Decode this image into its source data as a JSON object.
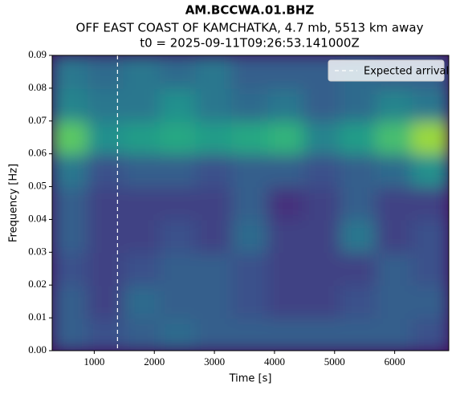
{
  "chart_data": {
    "type": "heatmap",
    "title": "AM.BCCWA.01.BHZ",
    "subtitle": "OFF EAST COAST OF KAMCHATKA, 4.7 mb, 5513 km away",
    "subtitle2": "t0 = 2025-09-11T09:26:53.141000Z",
    "xlabel": "Time [s]",
    "ylabel": "Frequency [Hz]",
    "xlim": [
      300,
      6900
    ],
    "ylim": [
      0,
      0.09
    ],
    "xticks": [
      1000,
      2000,
      3000,
      4000,
      5000,
      6000
    ],
    "yticks": [
      {
        "value": 0,
        "label": "0.00"
      },
      0.01,
      0.02,
      0.03,
      0.04,
      0.05,
      0.06,
      0.07,
      0.08,
      0.09
    ],
    "colormap": "viridis",
    "x_edges": [
      300,
      900,
      1500,
      2100,
      2700,
      3300,
      3900,
      4500,
      5100,
      5700,
      6300,
      6900
    ],
    "y_edges": [
      0,
      0.01,
      0.02,
      0.03,
      0.04,
      0.05,
      0.06,
      0.07,
      0.08,
      0.09
    ],
    "z": [
      [
        0.3,
        0.25,
        0.3,
        0.35,
        0.3,
        0.3,
        0.3,
        0.3,
        0.3,
        0.3,
        0.25
      ],
      [
        0.3,
        0.2,
        0.35,
        0.3,
        0.3,
        0.25,
        0.2,
        0.2,
        0.25,
        0.3,
        0.3
      ],
      [
        0.25,
        0.2,
        0.25,
        0.3,
        0.3,
        0.25,
        0.2,
        0.2,
        0.2,
        0.3,
        0.25
      ],
      [
        0.3,
        0.2,
        0.2,
        0.25,
        0.2,
        0.35,
        0.2,
        0.2,
        0.4,
        0.2,
        0.25
      ],
      [
        0.3,
        0.2,
        0.2,
        0.2,
        0.2,
        0.3,
        0.15,
        0.2,
        0.3,
        0.2,
        0.2
      ],
      [
        0.4,
        0.25,
        0.3,
        0.3,
        0.25,
        0.3,
        0.3,
        0.25,
        0.3,
        0.35,
        0.5
      ],
      [
        0.75,
        0.5,
        0.55,
        0.6,
        0.55,
        0.6,
        0.65,
        0.45,
        0.55,
        0.7,
        0.85
      ],
      [
        0.45,
        0.4,
        0.4,
        0.5,
        0.4,
        0.35,
        0.4,
        0.3,
        0.35,
        0.45,
        0.4
      ],
      [
        0.4,
        0.35,
        0.4,
        0.35,
        0.4,
        0.3,
        0.3,
        0.3,
        0.35,
        0.3,
        0.3
      ]
    ],
    "expected_arrival": {
      "name": "Expected arrival",
      "x": 1387,
      "color": "#ffffff"
    },
    "legend": "upper right"
  }
}
